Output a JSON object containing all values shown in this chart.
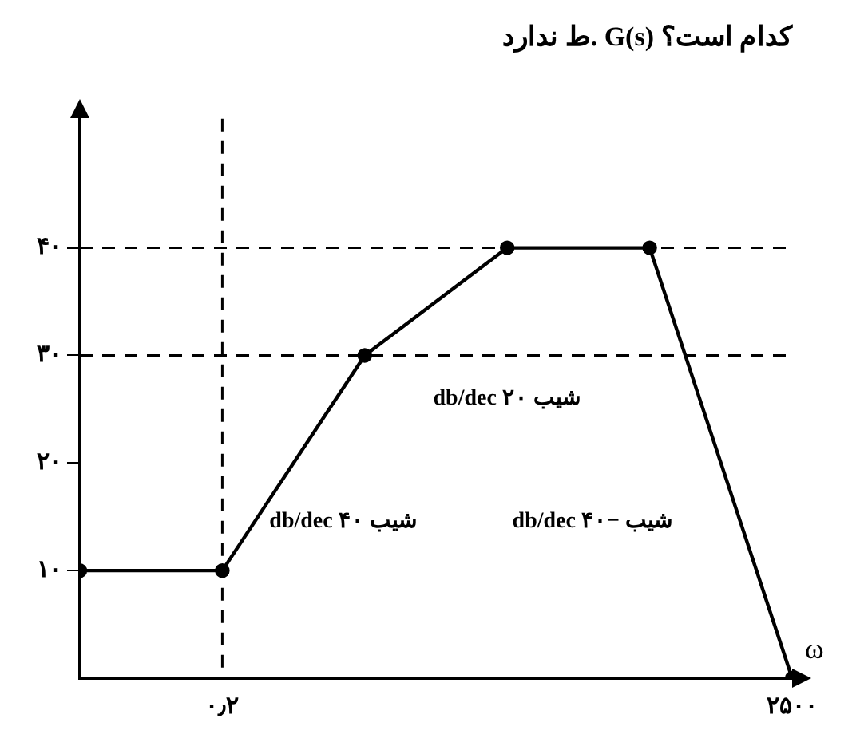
{
  "chart_data": {
    "type": "line",
    "title": "ط ندارد. G(s) کدام است؟",
    "xlabel": "ω",
    "categories": [
      null,
      "۰٫۲",
      null,
      null,
      null,
      "۲۵۰۰"
    ],
    "series": [
      {
        "color": "#000000",
        "values": [
          10,
          10,
          30,
          40,
          40,
          0
        ]
      }
    ],
    "ylim": [
      0,
      52
    ],
    "yticks": [
      {
        "value": 10,
        "label": "۱۰"
      },
      {
        "value": 20,
        "label": "۲۰"
      },
      {
        "value": 30,
        "label": "۳۰"
      },
      {
        "value": 40,
        "label": "۴۰"
      }
    ],
    "grid": false,
    "legend": false,
    "marker": "circle",
    "line_style": "solid",
    "ref_lines": [
      {
        "axis": "y",
        "value": 40,
        "color": "#000000",
        "line_style": "dashed"
      },
      {
        "axis": "y",
        "value": 30,
        "color": "#000000",
        "line_style": "dashed"
      },
      {
        "axis": "x",
        "value": "۰٫۲",
        "color": "#000000",
        "line_style": "dashed"
      }
    ],
    "annotations": [
      "شیب ۲۰ db/dec",
      "شیب ۴۰ db/dec",
      "شیب −۴۰ db/dec"
    ]
  }
}
